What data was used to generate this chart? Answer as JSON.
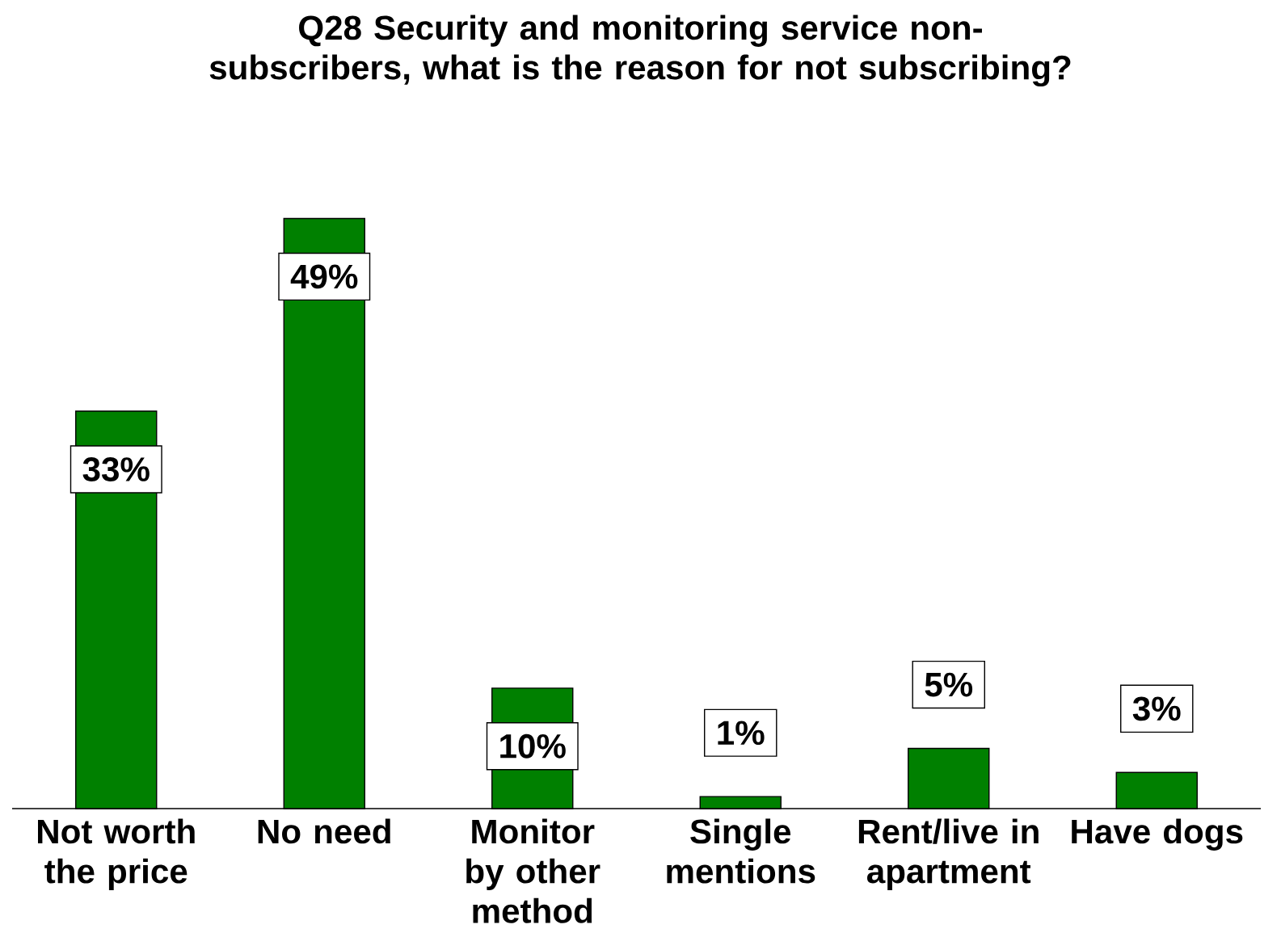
{
  "chart_data": {
    "type": "bar",
    "title": "Q28  Security and monitoring service non-subscribers, what is the reason for not subscribing?",
    "categories": [
      "Not worth the price",
      "No need",
      "Monitor by other method",
      "Single mentions",
      "Rent/live in apartment",
      "Have dogs"
    ],
    "values": [
      33,
      49,
      10,
      1,
      5,
      3
    ],
    "value_labels": [
      "33%",
      "49%",
      "10%",
      "1%",
      "5%",
      "3%"
    ],
    "color": "#008000"
  }
}
